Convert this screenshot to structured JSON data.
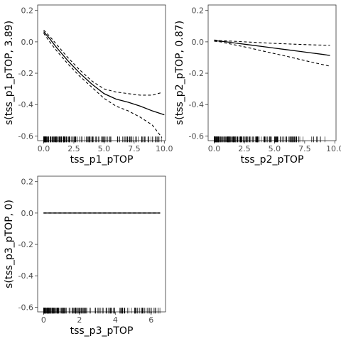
{
  "chart_data": [
    {
      "type": "line",
      "xlabel": "tss_p1_pTOP",
      "ylabel": "s(tss_p1_pTOP, 3.89)",
      "xlim": [
        -0.5,
        10.1
      ],
      "ylim": [
        -0.63,
        0.235
      ],
      "xticks": [
        0,
        2.5,
        5,
        7.5,
        10
      ],
      "xtick_labels": [
        "0.0",
        "2.5",
        "5.0",
        "7.5",
        "10.0"
      ],
      "yticks": [
        0.2,
        0.0,
        -0.2,
        -0.4,
        -0.6
      ],
      "ytick_labels": [
        "0.2",
        "0.0",
        "-0.2",
        "-0.4",
        "-0.6"
      ],
      "series": [
        {
          "role": "fit",
          "x": [
            0,
            0.5,
            1,
            2,
            3,
            4,
            5,
            6,
            7,
            8,
            9,
            10
          ],
          "y": [
            0.065,
            0.02,
            -0.03,
            -0.12,
            -0.2,
            -0.27,
            -0.33,
            -0.365,
            -0.385,
            -0.41,
            -0.44,
            -0.465
          ]
        },
        {
          "role": "upper",
          "x": [
            0,
            0.5,
            1,
            2,
            3,
            4,
            5,
            6,
            7,
            8,
            9,
            9.7
          ],
          "y": [
            0.075,
            0.035,
            -0.01,
            -0.1,
            -0.18,
            -0.25,
            -0.3,
            -0.32,
            -0.33,
            -0.34,
            -0.34,
            -0.325
          ]
        },
        {
          "role": "lower",
          "x": [
            0,
            0.5,
            1,
            2,
            3,
            4,
            5,
            6,
            7,
            8,
            9,
            9.8
          ],
          "y": [
            0.055,
            0.0,
            -0.05,
            -0.14,
            -0.22,
            -0.29,
            -0.36,
            -0.41,
            -0.44,
            -0.48,
            -0.53,
            -0.61
          ]
        }
      ],
      "rug": {
        "y": -0.622,
        "min": 0,
        "max": 9.8
      }
    },
    {
      "type": "line",
      "xlabel": "tss_p2_pTOP",
      "ylabel": "s(tss_p2_pTOP, 0.87)",
      "xlim": [
        -0.5,
        10.1
      ],
      "ylim": [
        -0.63,
        0.235
      ],
      "xticks": [
        0,
        2.5,
        5,
        7.5,
        10
      ],
      "xtick_labels": [
        "0.0",
        "2.5",
        "5.0",
        "7.5",
        "10.0"
      ],
      "yticks": [
        0.2,
        0.0,
        -0.2,
        -0.4,
        -0.6
      ],
      "ytick_labels": [
        "0.2",
        "0.0",
        "-0.2",
        "-0.4",
        "-0.6"
      ],
      "series": [
        {
          "role": "fit",
          "x": [
            0,
            1,
            2,
            3,
            4,
            5,
            6,
            7,
            8,
            9,
            9.6
          ],
          "y": [
            0.008,
            0.0,
            -0.01,
            -0.02,
            -0.03,
            -0.04,
            -0.05,
            -0.06,
            -0.07,
            -0.08,
            -0.087
          ]
        },
        {
          "role": "upper",
          "x": [
            0,
            0.5,
            1,
            2,
            3,
            4,
            5,
            6,
            7,
            8,
            9,
            9.6
          ],
          "y": [
            0.012,
            0.008,
            0.006,
            0.002,
            -0.002,
            -0.006,
            -0.01,
            -0.013,
            -0.016,
            -0.019,
            -0.021,
            -0.022
          ]
        },
        {
          "role": "lower",
          "x": [
            0,
            0.5,
            1,
            2,
            3,
            4,
            5,
            6,
            7,
            8,
            9,
            9.6
          ],
          "y": [
            0.004,
            0.0,
            -0.008,
            -0.024,
            -0.04,
            -0.058,
            -0.075,
            -0.092,
            -0.11,
            -0.128,
            -0.145,
            -0.155
          ]
        }
      ],
      "rug": {
        "y": -0.622,
        "min": 0,
        "max": 9.4
      }
    },
    {
      "type": "line",
      "xlabel": "tss_p3_pTOP",
      "ylabel": "s(tss_p3_pTOP, 0)",
      "xlim": [
        -0.33,
        6.8
      ],
      "ylim": [
        -0.63,
        0.235
      ],
      "xticks": [
        0,
        2,
        4,
        6
      ],
      "xtick_labels": [
        "0",
        "2",
        "4",
        "6"
      ],
      "yticks": [
        0.2,
        0.0,
        -0.2,
        -0.4,
        -0.6
      ],
      "ytick_labels": [
        "0.2",
        "0.0",
        "-0.2",
        "-0.4",
        "-0.6"
      ],
      "series": [
        {
          "role": "fit",
          "x": [
            0,
            6.5
          ],
          "y": [
            0.0,
            0.0
          ]
        },
        {
          "role": "upper",
          "x": [
            0,
            6.5
          ],
          "y": [
            0.001,
            0.001
          ]
        },
        {
          "role": "lower",
          "x": [
            0,
            6.5
          ],
          "y": [
            -0.001,
            -0.001
          ]
        }
      ],
      "rug": {
        "y": -0.622,
        "min": 0,
        "max": 6.5
      }
    }
  ]
}
